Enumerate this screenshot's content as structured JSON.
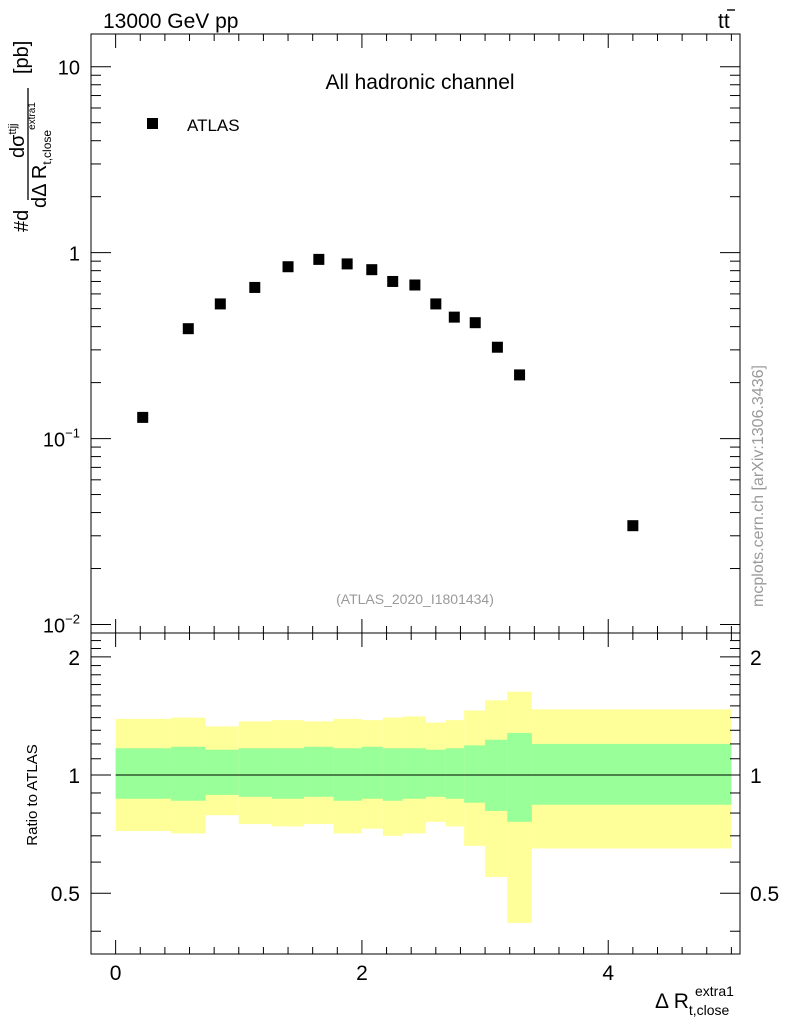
{
  "header": {
    "energy_label": "13000 GeV pp",
    "process_base": "t",
    "process_bar": "t"
  },
  "chart_data": [
    {
      "type": "scatter",
      "panel": "main",
      "title": "All hadronic channel",
      "analysis_id": "(ATLAS_2020_I1801434)",
      "yscale": "log",
      "ylim": [
        0.009,
        15
      ],
      "xlim": [
        -0.2,
        5.07
      ],
      "ylabel": {
        "prefix": "#d",
        "numerator": "dσ",
        "numerator_sup": "ttjj",
        "denominator": "dΔ R",
        "denominator_sub": "t,close",
        "denominator_sup": "extra1",
        "unit": "[pb]"
      },
      "yticks": [
        {
          "value": 10,
          "label": "10"
        },
        {
          "value": 1,
          "label": "1"
        },
        {
          "value": 0.1,
          "label": "10",
          "sup": "−1"
        },
        {
          "value": 0.01,
          "label": "10",
          "sup": "−2"
        }
      ],
      "legend": {
        "label": "ATLAS",
        "position": "top-left"
      },
      "series": [
        {
          "name": "ATLAS",
          "marker": "square",
          "color": "#000000",
          "x": [
            0.22,
            0.59,
            0.85,
            1.13,
            1.4,
            1.65,
            1.88,
            2.08,
            2.25,
            2.43,
            2.6,
            2.75,
            2.92,
            3.1,
            3.28,
            4.2
          ],
          "y": [
            0.13,
            0.39,
            0.53,
            0.65,
            0.84,
            0.92,
            0.87,
            0.81,
            0.7,
            0.67,
            0.53,
            0.45,
            0.42,
            0.31,
            0.22,
            0.034
          ]
        }
      ]
    },
    {
      "type": "area",
      "panel": "ratio",
      "ylabel": "Ratio to ATLAS",
      "ylim": [
        0.35,
        2.3
      ],
      "xlim": [
        -0.2,
        5.07
      ],
      "reference_line": 1,
      "yticks": [
        {
          "value": 2,
          "label": "2"
        },
        {
          "value": 1,
          "label": "1"
        },
        {
          "value": 0.5,
          "label": "0.5"
        }
      ],
      "xticks": [
        {
          "value": 0,
          "label": "0"
        },
        {
          "value": 2,
          "label": "2"
        },
        {
          "value": 4,
          "label": "4"
        }
      ],
      "xlabel": {
        "base": "Δ R",
        "sub": "t,close",
        "sup": "extra1"
      },
      "bin_edges": [
        0,
        0.45,
        0.73,
        1.0,
        1.27,
        1.53,
        1.77,
        2.0,
        2.17,
        2.33,
        2.52,
        2.68,
        2.83,
        3.0,
        3.18,
        3.38,
        5.0
      ],
      "bands": [
        {
          "name": "stat",
          "color": "#99ff99",
          "low": [
            0.87,
            0.86,
            0.89,
            0.88,
            0.87,
            0.88,
            0.86,
            0.87,
            0.86,
            0.87,
            0.88,
            0.87,
            0.85,
            0.81,
            0.76,
            0.84
          ],
          "high": [
            1.17,
            1.18,
            1.16,
            1.17,
            1.17,
            1.18,
            1.17,
            1.18,
            1.17,
            1.17,
            1.16,
            1.17,
            1.19,
            1.23,
            1.28,
            1.2
          ]
        },
        {
          "name": "total",
          "color": "#ffff99",
          "low": [
            0.72,
            0.71,
            0.79,
            0.75,
            0.74,
            0.75,
            0.71,
            0.73,
            0.7,
            0.71,
            0.76,
            0.74,
            0.66,
            0.55,
            0.42,
            0.65
          ],
          "high": [
            1.39,
            1.4,
            1.33,
            1.37,
            1.38,
            1.37,
            1.39,
            1.38,
            1.4,
            1.41,
            1.36,
            1.38,
            1.46,
            1.55,
            1.63,
            1.47
          ]
        }
      ]
    }
  ],
  "watermark": "mcplots.cern.ch [arXiv:1306.3436]"
}
